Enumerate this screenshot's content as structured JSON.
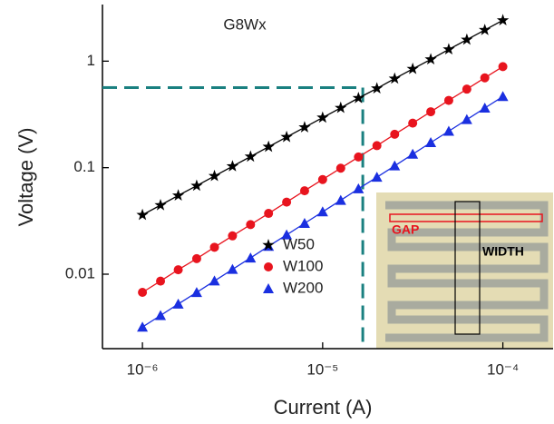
{
  "chart_data": {
    "type": "scatter",
    "title": "G8Wx",
    "xlabel": "Current (A)",
    "ylabel": "Voltage (V)",
    "xscale": "log",
    "yscale": "log",
    "xlim": [
      6e-07,
      0.00019
    ],
    "ylim": [
      0.002,
      3.4
    ],
    "xticks": [
      {
        "value": 1e-06,
        "label": "10⁻⁶"
      },
      {
        "value": 1e-05,
        "label": "10⁻⁵"
      },
      {
        "value": 0.0001,
        "label": "10⁻⁴"
      }
    ],
    "yticks": [
      0.01,
      0.1,
      1
    ],
    "x": [
      1e-06,
      1.26e-06,
      1.58e-06,
      2e-06,
      2.51e-06,
      3.16e-06,
      3.98e-06,
      5.01e-06,
      6.31e-06,
      7.94e-06,
      1e-05,
      1.26e-05,
      1.58e-05,
      2e-05,
      2.51e-05,
      3.16e-05,
      3.98e-05,
      5.01e-05,
      6.31e-05,
      7.94e-05,
      0.0001
    ],
    "series": [
      {
        "name": "W50",
        "color": "#000000",
        "marker": "star",
        "values": [
          0.036,
          0.0444,
          0.0548,
          0.0676,
          0.0835,
          0.103,
          0.127,
          0.157,
          0.194,
          0.239,
          0.295,
          0.364,
          0.45,
          0.555,
          0.685,
          0.845,
          1.04,
          1.29,
          1.59,
          1.96,
          2.42
        ]
      },
      {
        "name": "W100",
        "color": "#e8141e",
        "marker": "circle",
        "values": [
          0.00675,
          0.00861,
          0.011,
          0.014,
          0.0179,
          0.0229,
          0.0292,
          0.0372,
          0.0475,
          0.0607,
          0.0774,
          0.0989,
          0.126,
          0.161,
          0.206,
          0.262,
          0.335,
          0.428,
          0.546,
          0.697,
          0.889
        ]
      },
      {
        "name": "W200",
        "color": "#1a2fe0",
        "marker": "triangle",
        "values": [
          0.00319,
          0.00409,
          0.00525,
          0.00674,
          0.00865,
          0.0111,
          0.0142,
          0.0183,
          0.0234,
          0.03,
          0.0385,
          0.0494,
          0.0634,
          0.0814,
          0.104,
          0.134,
          0.172,
          0.22,
          0.283,
          0.363,
          0.466
        ]
      }
    ],
    "legend": "lower-center",
    "crosshair": {
      "x": 1.67e-05,
      "y": 0.565,
      "color": "#1a8080"
    },
    "inset_labels": {
      "gap": "GAP",
      "width": "WIDTH"
    }
  }
}
